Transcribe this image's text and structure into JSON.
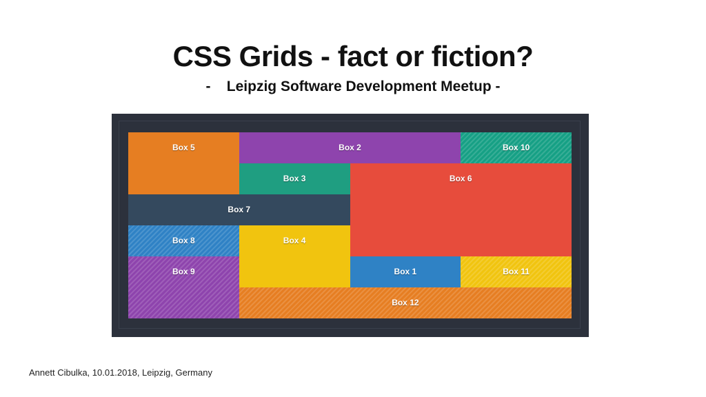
{
  "slide": {
    "title": "CSS Grids - fact or fiction?",
    "subtitle": "-    Leipzig Software Development Meetup -",
    "footer": "Annett Cibulka, 10.01.2018, Leipzig, Germany"
  },
  "colors": {
    "orange": "#e67e22",
    "purple": "#8e44ad",
    "teal": "#16a085",
    "green": "#1f9e81",
    "red": "#e74c3c",
    "navy": "#34495e",
    "blue": "#2f82c5",
    "yellow": "#f1c40f",
    "frame": "#2c313c"
  },
  "boxes": {
    "box1": "Box 1",
    "box2": "Box 2",
    "box3": "Box 3",
    "box4": "Box 4",
    "box5": "Box 5",
    "box6": "Box 6",
    "box7": "Box 7",
    "box8": "Box 8",
    "box9": "Box 9",
    "box10": "Box 10",
    "box11": "Box 11",
    "box12": "Box 12"
  }
}
